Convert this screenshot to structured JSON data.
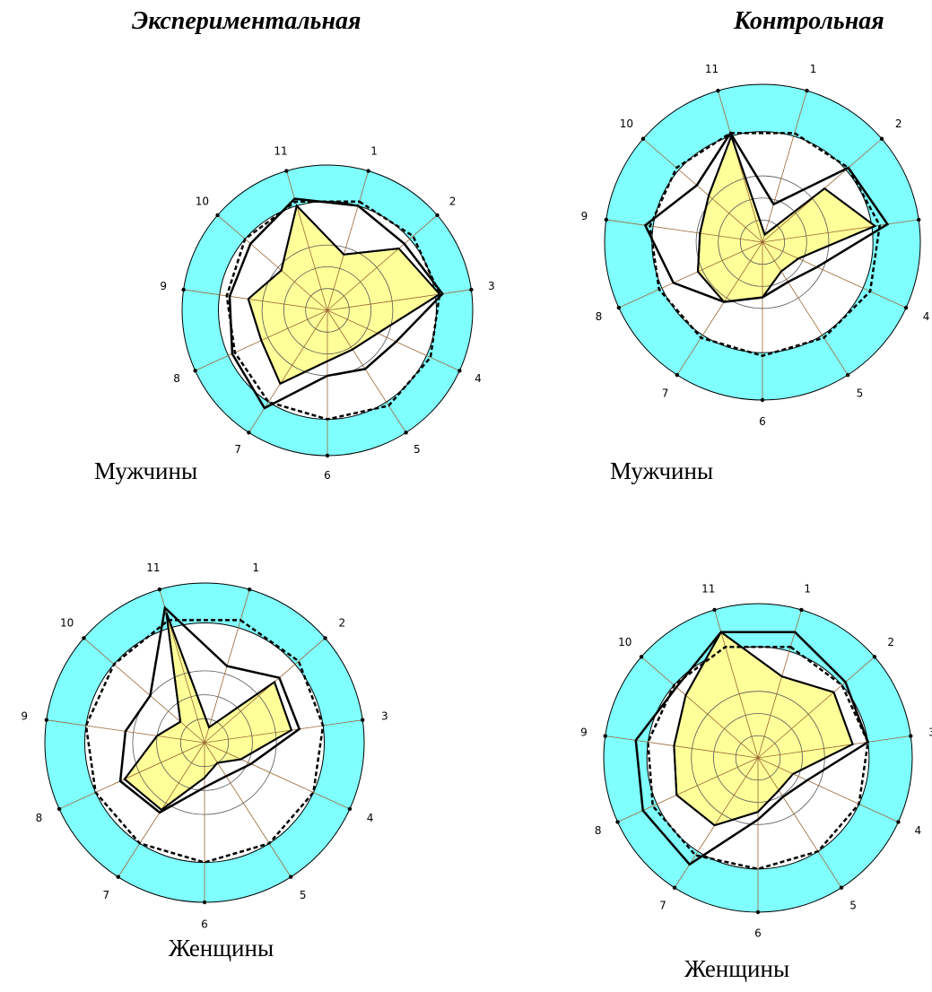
{
  "headings": {
    "experimental": "Экспериментальная",
    "control": "Контрольная"
  },
  "captions": {
    "exp_men": "Мужчины",
    "ctrl_men": "Мужчины",
    "exp_women": "Женщины",
    "ctrl_women": "Женщины"
  },
  "colors": {
    "ring_band": "#80FFFF",
    "inner_fill": "#FFFFFF",
    "data_fill": "#FFFF99",
    "grid_line": "#555555",
    "spoke_line": "#996633",
    "spoke_center": "#6666CC",
    "outline": "#000000"
  },
  "chart_data": [
    {
      "type": "radar",
      "axes": [
        "1",
        "2",
        "3",
        "4",
        "5",
        "6",
        "7",
        "8",
        "9",
        "10",
        "11"
      ],
      "rmax": 100,
      "ring_band": [
        75,
        100
      ],
      "series": [
        {
          "values": [
            40,
            65,
            78,
            38,
            32,
            35,
            60,
            50,
            55,
            42,
            75
          ]
        },
        {
          "values": [
            75,
            70,
            80,
            52,
            48,
            45,
            80,
            72,
            68,
            70,
            80
          ]
        },
        {
          "values": [
            78,
            78,
            78,
            78,
            78,
            75,
            75,
            70,
            70,
            75,
            78
          ]
        }
      ]
    },
    {
      "type": "radar",
      "axes": [
        "1",
        "2",
        "3",
        "4",
        "5",
        "6",
        "7",
        "8",
        "9",
        "10",
        "11"
      ],
      "rmax": 100,
      "ring_band": [
        70,
        100
      ],
      "series": [
        {
          "values": [
            5,
            52,
            72,
            25,
            22,
            35,
            45,
            45,
            40,
            45,
            70
          ]
        },
        {
          "values": [
            25,
            72,
            80,
            38,
            30,
            35,
            45,
            62,
            75,
            55,
            72
          ]
        },
        {
          "values": [
            72,
            72,
            75,
            75,
            72,
            72,
            72,
            72,
            72,
            72,
            72
          ]
        }
      ]
    },
    {
      "type": "radar",
      "axes": [
        "1",
        "2",
        "3",
        "4",
        "5",
        "6",
        "7",
        "8",
        "9",
        "10",
        "11"
      ],
      "rmax": 100,
      "ring_band": [
        75,
        100
      ],
      "series": [
        {
          "values": [
            10,
            58,
            55,
            25,
            15,
            22,
            50,
            55,
            30,
            20,
            85
          ]
        },
        {
          "values": [
            50,
            62,
            60,
            32,
            25,
            28,
            52,
            58,
            50,
            45,
            88
          ]
        },
        {
          "values": [
            80,
            78,
            75,
            75,
            75,
            75,
            75,
            75,
            75,
            75,
            80
          ]
        }
      ]
    },
    {
      "type": "radar",
      "axes": [
        "1",
        "2",
        "3",
        "4",
        "5",
        "6",
        "7",
        "8",
        "9",
        "10",
        "11"
      ],
      "rmax": 100,
      "ring_band": [
        72,
        100
      ],
      "series": [
        {
          "values": [
            55,
            65,
            62,
            25,
            25,
            35,
            52,
            58,
            55,
            62,
            85
          ]
        },
        {
          "values": [
            85,
            75,
            72,
            35,
            30,
            40,
            82,
            82,
            80,
            70,
            85
          ]
        },
        {
          "values": [
            75,
            72,
            72,
            72,
            72,
            72,
            75,
            75,
            72,
            72,
            75
          ]
        }
      ]
    }
  ]
}
